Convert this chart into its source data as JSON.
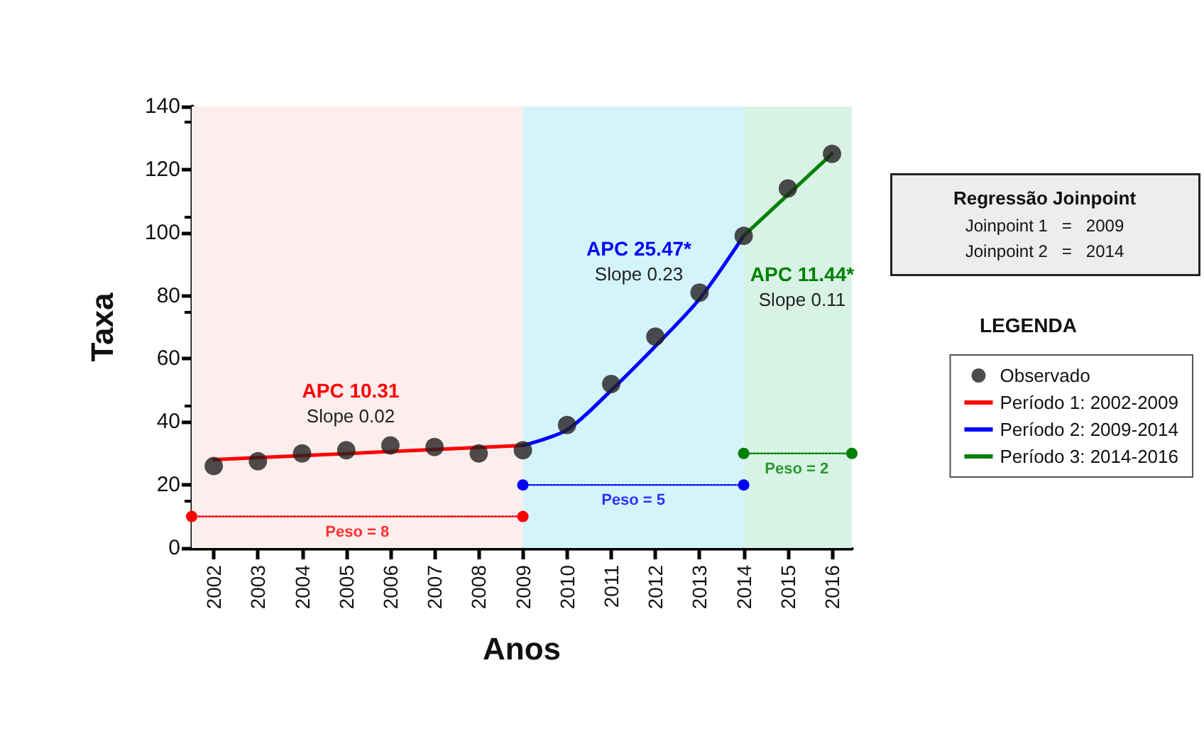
{
  "chart_data": {
    "type": "scatter",
    "xlabel": "Anos",
    "ylabel": "Taxa",
    "legend_title": "LEGENDA",
    "legend": "right",
    "xlim": [
      2001.5,
      2016.45
    ],
    "xticks": [
      2002,
      2003,
      2004,
      2005,
      2006,
      2007,
      2008,
      2009,
      2010,
      2011,
      2012,
      2013,
      2014,
      2015,
      2016
    ],
    "ylim": [
      0,
      140
    ],
    "yticks": [
      0,
      20,
      40,
      60,
      80,
      100,
      120,
      140
    ],
    "grid": false,
    "series": [
      {
        "name": "Observado",
        "marker": "circle",
        "color": "#231f20",
        "x": [
          2002,
          2003,
          2004,
          2005,
          2006,
          2007,
          2008,
          2009,
          2010,
          2011,
          2012,
          2013,
          2014,
          2015,
          2016
        ],
        "values": [
          26,
          27.5,
          30,
          31,
          32.5,
          32,
          30,
          31,
          39,
          52,
          67,
          81,
          99,
          114,
          125
        ]
      },
      {
        "name": "Período 1: 2002-2009",
        "type": "line",
        "marker": "none",
        "color": "#ff0000",
        "x": [
          2002,
          2009
        ],
        "values": [
          28,
          32.5
        ]
      },
      {
        "name": "Período 2: 2009-2014",
        "type": "line",
        "marker": "none",
        "color": "#0000ff",
        "x": [
          2009,
          2010,
          2011,
          2012,
          2013,
          2014
        ],
        "values": [
          32.5,
          37.5,
          50,
          64,
          79,
          99
        ]
      },
      {
        "name": "Período 3: 2014-2016",
        "type": "line",
        "marker": "none",
        "color": "#008000",
        "x": [
          2014,
          2015,
          2016
        ],
        "values": [
          99,
          112,
          125
        ]
      },
      {
        "type": "line",
        "marker": "circle",
        "line_style": "dotted",
        "color": "#ff0000",
        "x": [
          2001.5,
          2009
        ],
        "values": [
          10,
          10
        ]
      },
      {
        "type": "line",
        "marker": "circle",
        "line_style": "dotted",
        "color": "#0000ff",
        "x": [
          2009,
          2014
        ],
        "values": [
          20,
          20
        ]
      },
      {
        "type": "line",
        "marker": "circle",
        "line_style": "dotted",
        "color": "#008000",
        "x": [
          2014,
          2016.45
        ],
        "values": [
          30,
          30
        ]
      }
    ],
    "bands": [
      {
        "axis": "x",
        "from": 2001.5,
        "to": 2009,
        "color": "#fdeeee"
      },
      {
        "axis": "x",
        "from": 2009,
        "to": 2014,
        "color": "#d4f4fb"
      },
      {
        "axis": "x",
        "from": 2014,
        "to": 2016.45,
        "color": "#d8f3e6"
      }
    ],
    "annotations": [
      "Regressão Joinpoint",
      "Joinpoint 1   =   2009",
      "Joinpoint 2   =   2014",
      "APC 10.31\nSlope 0.02",
      "APC 25.47*\nSlope 0.23",
      "APC 11.44*\nSlope 0.11",
      {
        "text": "Peso = 8",
        "x": 2005.25,
        "y": 10
      },
      {
        "text": "Peso = 5",
        "x": 2011.5,
        "y": 20
      },
      {
        "text": "Peso = 2",
        "x": 2015.2,
        "y": 30
      }
    ]
  }
}
